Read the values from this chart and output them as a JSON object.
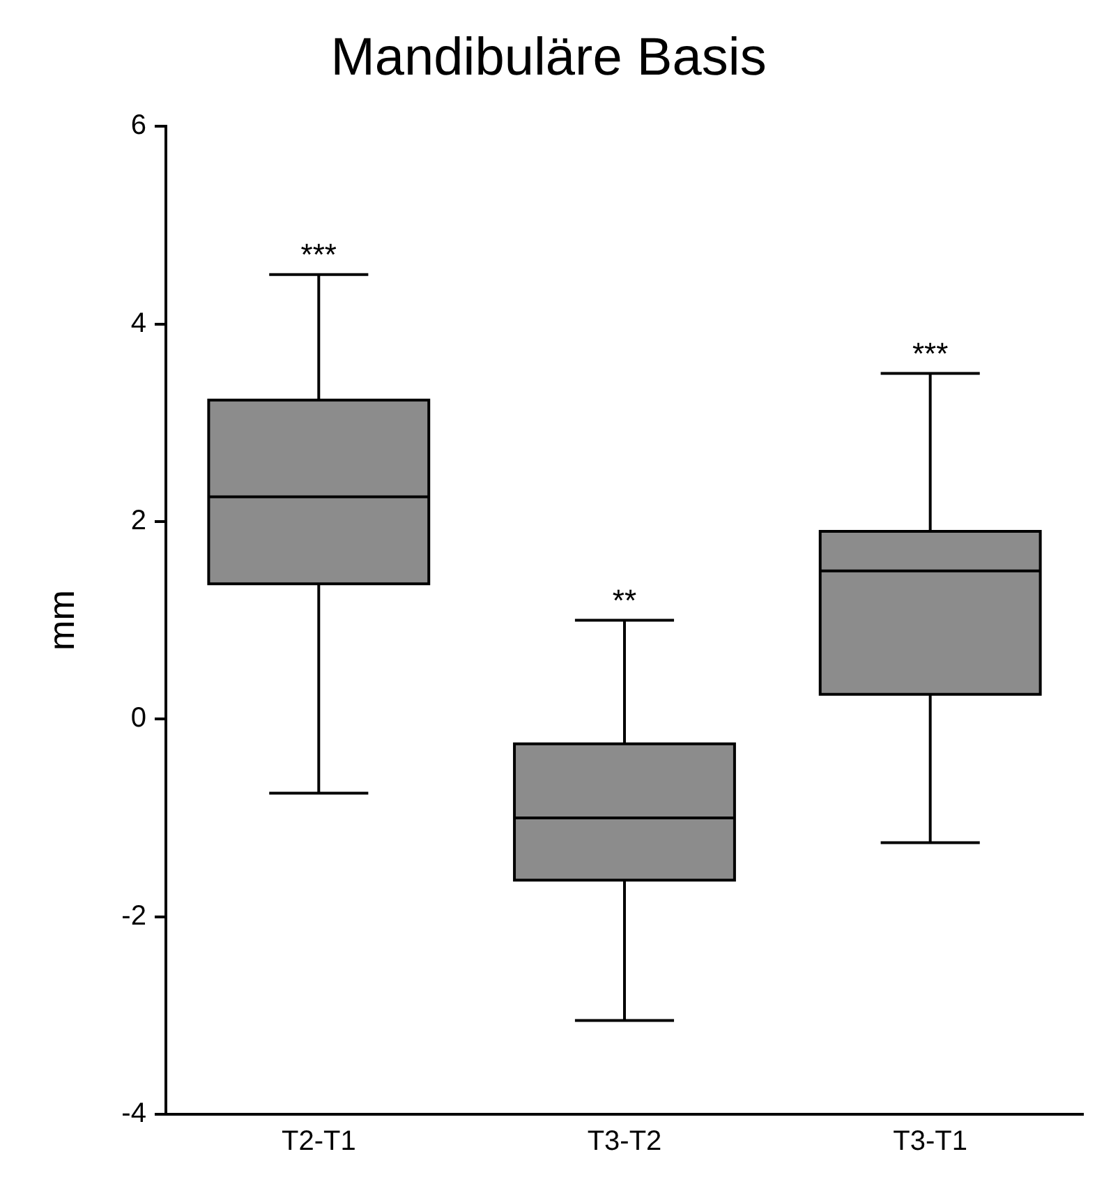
{
  "chart_data": {
    "type": "box",
    "title": "Mandibuläre Basis",
    "ylabel": "mm",
    "categories": [
      "T2-T1",
      "T3-T2",
      "T3-T1"
    ],
    "color": "#8c8c8c",
    "boxes": [
      {
        "low": -0.75,
        "q1": 1.37,
        "median": 2.25,
        "q3": 3.23,
        "high": 4.5
      },
      {
        "low": -3.05,
        "q1": -1.63,
        "median": -1.0,
        "q3": -0.25,
        "high": 1.0
      },
      {
        "low": -1.25,
        "q1": 0.25,
        "median": 1.5,
        "q3": 1.9,
        "high": 3.5
      }
    ],
    "ylim": [
      -4,
      6
    ],
    "yticks": [
      -4,
      -2,
      0,
      2,
      4,
      6
    ],
    "grid": false,
    "legend": false,
    "annotations": [
      {
        "text": "***",
        "x": "T2-T1",
        "y": 4.5
      },
      {
        "text": "**",
        "x": "T3-T2",
        "y": 1.0
      },
      {
        "text": "***",
        "x": "T3-T1",
        "y": 3.5
      }
    ]
  }
}
